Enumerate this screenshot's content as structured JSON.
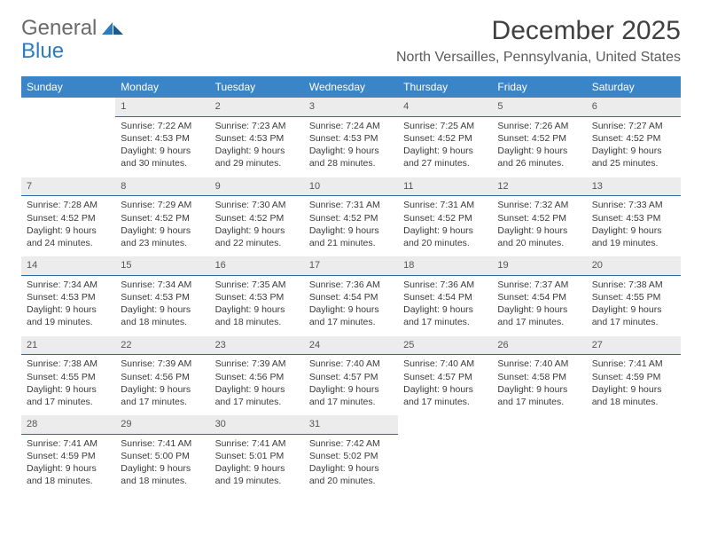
{
  "logo": {
    "text1": "General",
    "text2": "Blue"
  },
  "title": {
    "month": "December 2025",
    "location": "North Versailles, Pennsylvania, United States"
  },
  "colors": {
    "header_bg": "#3a85c7",
    "daynum_bg": "#ececec",
    "daynum_border": "#2a6aa3",
    "text": "#3a3a3a"
  },
  "weekdays": [
    "Sunday",
    "Monday",
    "Tuesday",
    "Wednesday",
    "Thursday",
    "Friday",
    "Saturday"
  ],
  "weeks": [
    [
      null,
      {
        "n": "1",
        "sr": "Sunrise: 7:22 AM",
        "ss": "Sunset: 4:53 PM",
        "d1": "Daylight: 9 hours",
        "d2": "and 30 minutes."
      },
      {
        "n": "2",
        "sr": "Sunrise: 7:23 AM",
        "ss": "Sunset: 4:53 PM",
        "d1": "Daylight: 9 hours",
        "d2": "and 29 minutes."
      },
      {
        "n": "3",
        "sr": "Sunrise: 7:24 AM",
        "ss": "Sunset: 4:53 PM",
        "d1": "Daylight: 9 hours",
        "d2": "and 28 minutes."
      },
      {
        "n": "4",
        "sr": "Sunrise: 7:25 AM",
        "ss": "Sunset: 4:52 PM",
        "d1": "Daylight: 9 hours",
        "d2": "and 27 minutes."
      },
      {
        "n": "5",
        "sr": "Sunrise: 7:26 AM",
        "ss": "Sunset: 4:52 PM",
        "d1": "Daylight: 9 hours",
        "d2": "and 26 minutes."
      },
      {
        "n": "6",
        "sr": "Sunrise: 7:27 AM",
        "ss": "Sunset: 4:52 PM",
        "d1": "Daylight: 9 hours",
        "d2": "and 25 minutes."
      }
    ],
    [
      {
        "n": "7",
        "sr": "Sunrise: 7:28 AM",
        "ss": "Sunset: 4:52 PM",
        "d1": "Daylight: 9 hours",
        "d2": "and 24 minutes."
      },
      {
        "n": "8",
        "sr": "Sunrise: 7:29 AM",
        "ss": "Sunset: 4:52 PM",
        "d1": "Daylight: 9 hours",
        "d2": "and 23 minutes."
      },
      {
        "n": "9",
        "sr": "Sunrise: 7:30 AM",
        "ss": "Sunset: 4:52 PM",
        "d1": "Daylight: 9 hours",
        "d2": "and 22 minutes."
      },
      {
        "n": "10",
        "sr": "Sunrise: 7:31 AM",
        "ss": "Sunset: 4:52 PM",
        "d1": "Daylight: 9 hours",
        "d2": "and 21 minutes."
      },
      {
        "n": "11",
        "sr": "Sunrise: 7:31 AM",
        "ss": "Sunset: 4:52 PM",
        "d1": "Daylight: 9 hours",
        "d2": "and 20 minutes."
      },
      {
        "n": "12",
        "sr": "Sunrise: 7:32 AM",
        "ss": "Sunset: 4:52 PM",
        "d1": "Daylight: 9 hours",
        "d2": "and 20 minutes."
      },
      {
        "n": "13",
        "sr": "Sunrise: 7:33 AM",
        "ss": "Sunset: 4:53 PM",
        "d1": "Daylight: 9 hours",
        "d2": "and 19 minutes."
      }
    ],
    [
      {
        "n": "14",
        "sr": "Sunrise: 7:34 AM",
        "ss": "Sunset: 4:53 PM",
        "d1": "Daylight: 9 hours",
        "d2": "and 19 minutes."
      },
      {
        "n": "15",
        "sr": "Sunrise: 7:34 AM",
        "ss": "Sunset: 4:53 PM",
        "d1": "Daylight: 9 hours",
        "d2": "and 18 minutes."
      },
      {
        "n": "16",
        "sr": "Sunrise: 7:35 AM",
        "ss": "Sunset: 4:53 PM",
        "d1": "Daylight: 9 hours",
        "d2": "and 18 minutes."
      },
      {
        "n": "17",
        "sr": "Sunrise: 7:36 AM",
        "ss": "Sunset: 4:54 PM",
        "d1": "Daylight: 9 hours",
        "d2": "and 17 minutes."
      },
      {
        "n": "18",
        "sr": "Sunrise: 7:36 AM",
        "ss": "Sunset: 4:54 PM",
        "d1": "Daylight: 9 hours",
        "d2": "and 17 minutes."
      },
      {
        "n": "19",
        "sr": "Sunrise: 7:37 AM",
        "ss": "Sunset: 4:54 PM",
        "d1": "Daylight: 9 hours",
        "d2": "and 17 minutes."
      },
      {
        "n": "20",
        "sr": "Sunrise: 7:38 AM",
        "ss": "Sunset: 4:55 PM",
        "d1": "Daylight: 9 hours",
        "d2": "and 17 minutes."
      }
    ],
    [
      {
        "n": "21",
        "sr": "Sunrise: 7:38 AM",
        "ss": "Sunset: 4:55 PM",
        "d1": "Daylight: 9 hours",
        "d2": "and 17 minutes."
      },
      {
        "n": "22",
        "sr": "Sunrise: 7:39 AM",
        "ss": "Sunset: 4:56 PM",
        "d1": "Daylight: 9 hours",
        "d2": "and 17 minutes."
      },
      {
        "n": "23",
        "sr": "Sunrise: 7:39 AM",
        "ss": "Sunset: 4:56 PM",
        "d1": "Daylight: 9 hours",
        "d2": "and 17 minutes."
      },
      {
        "n": "24",
        "sr": "Sunrise: 7:40 AM",
        "ss": "Sunset: 4:57 PM",
        "d1": "Daylight: 9 hours",
        "d2": "and 17 minutes."
      },
      {
        "n": "25",
        "sr": "Sunrise: 7:40 AM",
        "ss": "Sunset: 4:57 PM",
        "d1": "Daylight: 9 hours",
        "d2": "and 17 minutes."
      },
      {
        "n": "26",
        "sr": "Sunrise: 7:40 AM",
        "ss": "Sunset: 4:58 PM",
        "d1": "Daylight: 9 hours",
        "d2": "and 17 minutes."
      },
      {
        "n": "27",
        "sr": "Sunrise: 7:41 AM",
        "ss": "Sunset: 4:59 PM",
        "d1": "Daylight: 9 hours",
        "d2": "and 18 minutes."
      }
    ],
    [
      {
        "n": "28",
        "sr": "Sunrise: 7:41 AM",
        "ss": "Sunset: 4:59 PM",
        "d1": "Daylight: 9 hours",
        "d2": "and 18 minutes."
      },
      {
        "n": "29",
        "sr": "Sunrise: 7:41 AM",
        "ss": "Sunset: 5:00 PM",
        "d1": "Daylight: 9 hours",
        "d2": "and 18 minutes."
      },
      {
        "n": "30",
        "sr": "Sunrise: 7:41 AM",
        "ss": "Sunset: 5:01 PM",
        "d1": "Daylight: 9 hours",
        "d2": "and 19 minutes."
      },
      {
        "n": "31",
        "sr": "Sunrise: 7:42 AM",
        "ss": "Sunset: 5:02 PM",
        "d1": "Daylight: 9 hours",
        "d2": "and 20 minutes."
      },
      null,
      null,
      null
    ]
  ]
}
